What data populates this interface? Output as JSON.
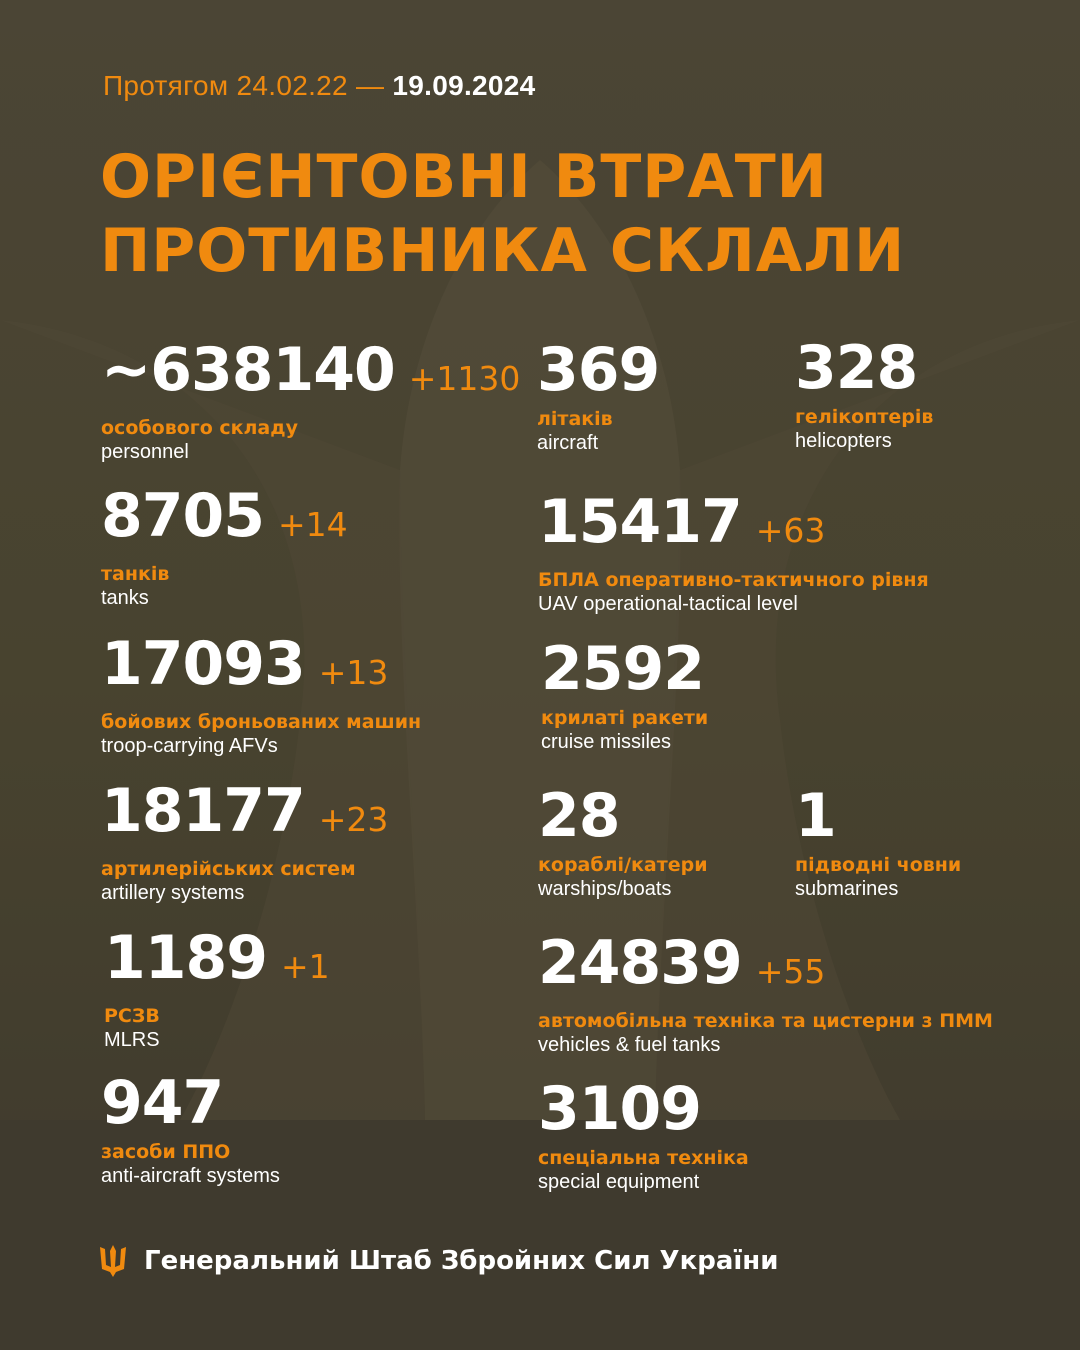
{
  "header": {
    "period_prefix": "Протягом 24.02.22 —",
    "period_date": "19.09.2024",
    "title_line1": "ОРІЄНТОВНІ ВТРАТИ",
    "title_line2": "ПРОТИВНИКА СКЛАЛИ"
  },
  "stats": [
    {
      "value": "~638140",
      "delta": "+1130",
      "ua": "особового складу",
      "en": "personnel"
    },
    {
      "value": "369",
      "delta": "",
      "ua": "літаків",
      "en": "aircraft"
    },
    {
      "value": "328",
      "delta": "",
      "ua": "гелікоптерів",
      "en": "helicopters"
    },
    {
      "value": "8705",
      "delta": "+14",
      "ua": "танків",
      "en": "tanks"
    },
    {
      "value": "15417",
      "delta": "+63",
      "ua": "БПЛА оперативно-тактичного рівня",
      "en": "UAV operational-tactical level"
    },
    {
      "value": "17093",
      "delta": "+13",
      "ua": "бойових броньованих машин",
      "en": "troop-carrying AFVs"
    },
    {
      "value": "2592",
      "delta": "",
      "ua": "крилаті ракети",
      "en": "cruise missiles"
    },
    {
      "value": "18177",
      "delta": "+23",
      "ua": "артилерійських систем",
      "en": "artillery systems"
    },
    {
      "value": "28",
      "delta": "",
      "ua": "кораблі/катери",
      "en": "warships/boats"
    },
    {
      "value": "1",
      "delta": "",
      "ua": "підводні човни",
      "en": "submarines"
    },
    {
      "value": "1189",
      "delta": "+1",
      "ua": "РСЗВ",
      "en": "MLRS"
    },
    {
      "value": "24839",
      "delta": "+55",
      "ua": "автомобільна техніка та цистерни з ПММ",
      "en": "vehicles & fuel tanks"
    },
    {
      "value": "947",
      "delta": "",
      "ua": "засоби ППО",
      "en": "anti-aircraft systems"
    },
    {
      "value": "3109",
      "delta": "",
      "ua": "спеціальна техніка",
      "en": "special equipment"
    }
  ],
  "footer": {
    "org": "Генеральний Штаб Збройних Сил України",
    "icon": "trident-icon"
  },
  "colors": {
    "accent": "#f08a0f",
    "background": "#4b4535"
  }
}
